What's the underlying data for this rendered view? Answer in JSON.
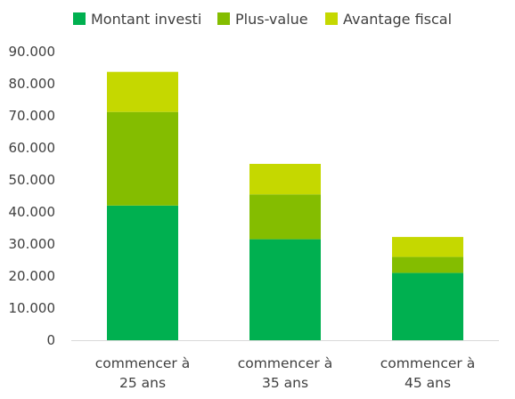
{
  "chart_data": {
    "type": "bar",
    "stacked": true,
    "categories": [
      [
        "commencer à",
        "25 ans"
      ],
      [
        "commencer à",
        "35 ans"
      ],
      [
        "commencer à",
        "45 ans"
      ]
    ],
    "series": [
      {
        "name": "Montant investi",
        "color": "#00b050",
        "values": [
          42000,
          31500,
          21000
        ]
      },
      {
        "name": "Plus-value",
        "color": "#84bd00",
        "values": [
          29200,
          14000,
          5000
        ]
      },
      {
        "name": "Avantage fiscal",
        "color": "#c5d800",
        "values": [
          12500,
          9500,
          6200
        ]
      }
    ],
    "yticks": [
      {
        "value": 0,
        "label": "0"
      },
      {
        "value": 10000,
        "label": "10.000"
      },
      {
        "value": 20000,
        "label": "20.000"
      },
      {
        "value": 30000,
        "label": "30.000"
      },
      {
        "value": 40000,
        "label": "40.000"
      },
      {
        "value": 50000,
        "label": "50.000"
      },
      {
        "value": 60000,
        "label": "60.000"
      },
      {
        "value": 70000,
        "label": "70.000"
      },
      {
        "value": 80000,
        "label": "80.000"
      },
      {
        "value": 90000,
        "label": "90.000"
      }
    ],
    "ylim": [
      0,
      90000
    ],
    "grid": false,
    "legend": "top",
    "axis_color": "#d9d9d9"
  }
}
